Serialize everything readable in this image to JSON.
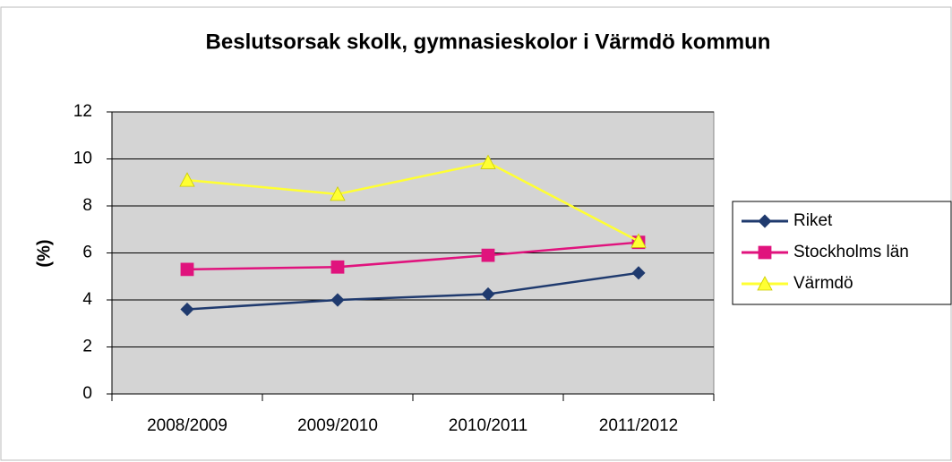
{
  "chart_data": {
    "type": "line",
    "title": "Beslutsorsak skolk, gymnasieskolor i Värmdö kommun",
    "y_label": "(%)",
    "categories": [
      "2008/2009",
      "2009/2010",
      "2010/2011",
      "2011/2012"
    ],
    "series": [
      {
        "name": "Riket",
        "color": "#1f3a6e",
        "marker": "diamond",
        "values": [
          3.6,
          4.0,
          4.25,
          5.15
        ]
      },
      {
        "name": "Stockholms län",
        "color": "#e0137d",
        "marker": "square",
        "values": [
          5.3,
          5.4,
          5.9,
          6.45
        ]
      },
      {
        "name": "Värmdö",
        "color": "#ffff33",
        "marker": "triangle",
        "values": [
          9.1,
          8.5,
          9.85,
          6.5
        ]
      }
    ],
    "ylim": [
      0,
      12
    ],
    "yticks": [
      0,
      2,
      4,
      6,
      8,
      10,
      12
    ],
    "grid": true,
    "legend": "right"
  }
}
